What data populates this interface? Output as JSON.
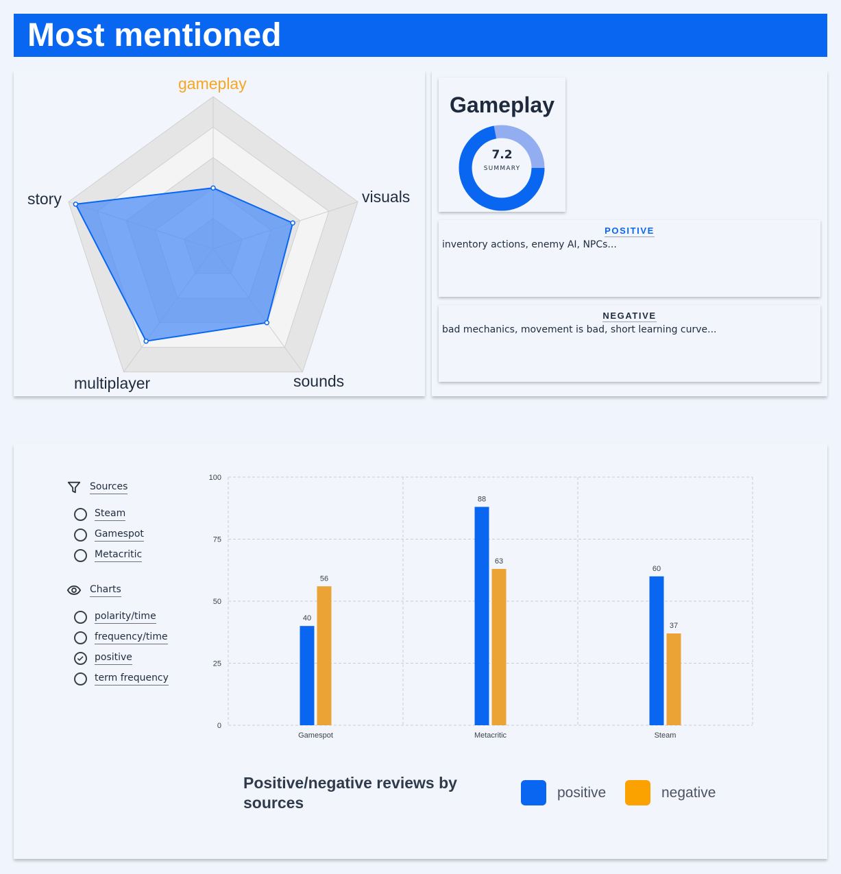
{
  "header": {
    "title": "Most mentioned"
  },
  "radar": {
    "axes": [
      "gameplay",
      "visuals",
      "sounds",
      "multiplayer",
      "story"
    ],
    "selected_axis": "gameplay",
    "values": [
      0.4,
      0.55,
      0.6,
      0.75,
      0.95
    ],
    "colors": {
      "fill": "#4a8cf7",
      "stroke": "#0866f0",
      "selected": "#f5a623"
    }
  },
  "summary": {
    "title": "Gameplay",
    "score": "7.2",
    "caption": "SUMMARY",
    "score_fraction": 0.72,
    "colors": {
      "primary": "#0866f0",
      "secondary": "#93aef0"
    }
  },
  "positive": {
    "label": "POSITIVE",
    "text": "inventory actions, enemy AI, NPCs...",
    "color": "#0866f0"
  },
  "negative": {
    "label": "NEGATIVE",
    "text": "bad mechanics, movement is bad, short learning curve...",
    "color": "#1f2b3d"
  },
  "filters": {
    "sources_label": "Sources",
    "sources": [
      {
        "label": "Steam",
        "checked": false
      },
      {
        "label": "Gamespot",
        "checked": false
      },
      {
        "label": "Metacritic",
        "checked": false
      }
    ],
    "charts_label": "Charts",
    "charts": [
      {
        "label": "polarity/time",
        "checked": false
      },
      {
        "label": "frequency/time",
        "checked": false
      },
      {
        "label": "positive",
        "checked": true
      },
      {
        "label": "term frequency",
        "checked": false
      }
    ]
  },
  "chart_data": {
    "type": "bar",
    "title": "Positive/negative reviews by sources",
    "categories": [
      "Gamespot",
      "Metacritic",
      "Steam"
    ],
    "series": [
      {
        "name": "positive",
        "values": [
          40,
          88,
          60
        ],
        "color": "#0866f0"
      },
      {
        "name": "negative",
        "values": [
          56,
          63,
          37
        ],
        "color": "#eba336"
      }
    ],
    "ylim": [
      0,
      100
    ],
    "yticks": [
      0,
      25,
      50,
      75,
      100
    ],
    "grid": true,
    "legend_position": "bottom-right",
    "legend_colors": [
      "#0866f0",
      "#fba200"
    ]
  }
}
